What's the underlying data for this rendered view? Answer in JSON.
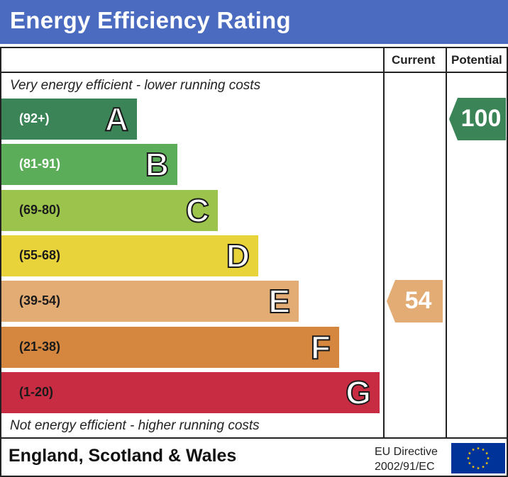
{
  "title": "Energy Efficiency Rating",
  "headers": {
    "current": "Current",
    "potential": "Potential"
  },
  "notes": {
    "top": "Very energy efficient - lower running costs",
    "bottom": "Not energy efficient - higher running costs"
  },
  "chart_data": {
    "type": "bar",
    "title": "Energy Efficiency Rating",
    "bands": [
      {
        "letter": "A",
        "range": "(92+)",
        "min": 92,
        "max": 100,
        "color": "#3a8458",
        "text_color": "#ffffff"
      },
      {
        "letter": "B",
        "range": "(81-91)",
        "min": 81,
        "max": 91,
        "color": "#5cad5a",
        "text_color": "#ffffff"
      },
      {
        "letter": "C",
        "range": "(69-80)",
        "min": 69,
        "max": 80,
        "color": "#9cc44d",
        "text_color": "#1a1a1a"
      },
      {
        "letter": "D",
        "range": "(55-68)",
        "min": 55,
        "max": 68,
        "color": "#e9d33b",
        "text_color": "#1a1a1a"
      },
      {
        "letter": "E",
        "range": "(39-54)",
        "min": 39,
        "max": 54,
        "color": "#e3ac74",
        "text_color": "#1a1a1a"
      },
      {
        "letter": "F",
        "range": "(21-38)",
        "min": 21,
        "max": 38,
        "color": "#d5863f",
        "text_color": "#1a1a1a"
      },
      {
        "letter": "G",
        "range": "(1-20)",
        "min": 1,
        "max": 20,
        "color": "#c72c43",
        "text_color": "#1a1a1a"
      }
    ],
    "current": {
      "value": 54,
      "band": "E",
      "color": "#e3ac74"
    },
    "potential": {
      "value": 100,
      "band": "A",
      "color": "#3a8458"
    }
  },
  "footer": {
    "region": "England, Scotland & Wales",
    "directive_line1": "EU Directive",
    "directive_line2": "2002/91/EC"
  },
  "icons": {
    "flag": "eu-flag-icon"
  }
}
